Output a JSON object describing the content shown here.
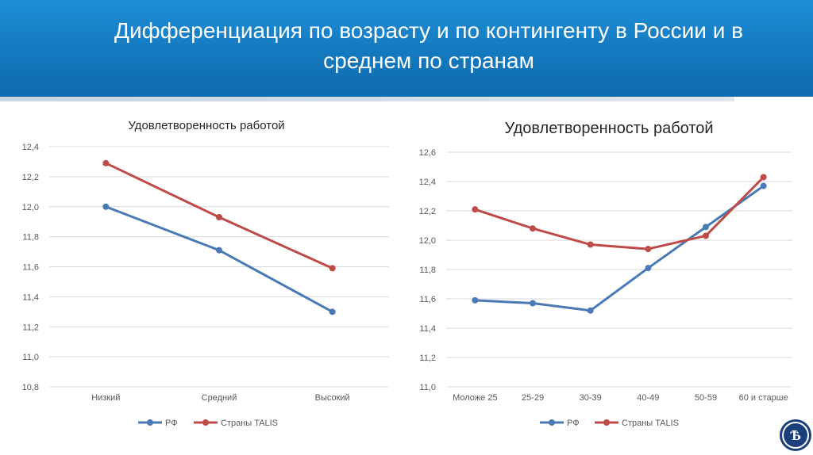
{
  "slide": {
    "title": "Дифференциация по возрасту и по контингенту в России и в среднем по странам",
    "logo_text": "Ѣ"
  },
  "colors": {
    "rf": "#4a7ab5",
    "talis": "#be4b48",
    "grid": "#d9d9d9",
    "header": "#1479bf"
  },
  "chart_data": [
    {
      "type": "line",
      "title": "Удовлетворенность работой",
      "categories": [
        "Низкий",
        "Средний",
        "Высокий"
      ],
      "series": [
        {
          "name": "РФ",
          "values": [
            12.0,
            11.71,
            11.3
          ]
        },
        {
          "name": "Страны TALIS",
          "values": [
            12.29,
            11.93,
            11.59
          ]
        }
      ],
      "yticks": [
        "12,4",
        "12,2",
        "12,0",
        "11,8",
        "11,6",
        "11,4",
        "11,2",
        "11,0",
        "10,8"
      ],
      "ylim": [
        10.8,
        12.4
      ],
      "grid": true,
      "legend": "bottom"
    },
    {
      "type": "line",
      "title": "Удовлетворенность работой",
      "categories": [
        "Моложе 25",
        "25-29",
        "30-39",
        "40-49",
        "50-59",
        "60 и старше"
      ],
      "series": [
        {
          "name": "РФ",
          "values": [
            11.59,
            11.57,
            11.52,
            11.81,
            12.09,
            12.37
          ]
        },
        {
          "name": "Страны TALIS",
          "values": [
            12.21,
            12.08,
            11.97,
            11.94,
            12.03,
            12.43
          ]
        }
      ],
      "yticks": [
        "12,6",
        "12,4",
        "12,2",
        "12,0",
        "11,8",
        "11,6",
        "11,4",
        "11,2",
        "11,0"
      ],
      "ylim": [
        11.0,
        12.6
      ],
      "grid": true,
      "legend": "bottom"
    }
  ]
}
